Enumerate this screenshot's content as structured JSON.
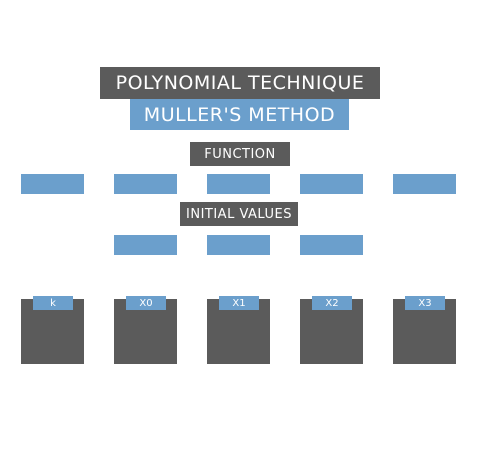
{
  "header": {
    "title": "POLYNOMIAL TECHNIQUE",
    "subtitle": "MULLER'S METHOD"
  },
  "function_section": {
    "label": "FUNCTION",
    "fields": [
      "",
      "",
      "",
      "",
      ""
    ]
  },
  "initial_section": {
    "label": "INITIAL VALUES",
    "fields": [
      "",
      "",
      ""
    ]
  },
  "table": {
    "columns": [
      {
        "label": "k"
      },
      {
        "label": "X0"
      },
      {
        "label": "X1"
      },
      {
        "label": "X2"
      },
      {
        "label": "X3"
      }
    ]
  },
  "colors": {
    "dark": "#5b5b5b",
    "accent": "#6b9fcc",
    "background": "#ffffff"
  }
}
